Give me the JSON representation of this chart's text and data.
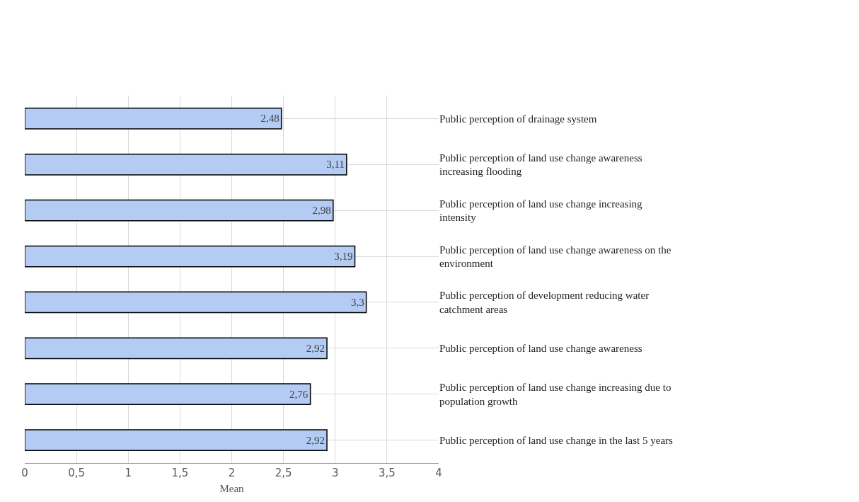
{
  "chart_data": {
    "type": "bar",
    "orientation": "horizontal",
    "xlabel": "Mean",
    "categories": [
      "Public perception of drainage system",
      "Public perception of land use change awareness increasing flooding",
      "Public perception of land use change increasing intensity",
      "Public perception of land use change awareness on the environment",
      "Public perception of development reducing water catchment areas",
      "Public perception of land use change awareness",
      "Public perception of land use change increasing due to population growth",
      "Public perception of land use change in the last 5 years"
    ],
    "values": [
      2.48,
      3.11,
      2.98,
      3.19,
      3.3,
      2.92,
      2.76,
      2.92
    ],
    "value_labels": [
      "2,48",
      "3,11",
      "2,98",
      "3,19",
      "3,3",
      "2,92",
      "2,76",
      "2,92"
    ],
    "color": "#b4cbf3",
    "xlim": [
      0,
      4
    ],
    "xticks": [
      0,
      {
        "value": 0.5,
        "label": "0,5"
      },
      1,
      {
        "value": 1.5,
        "label": "1,5"
      },
      2,
      {
        "value": 2.5,
        "label": "2,5"
      },
      3,
      {
        "value": 3.5,
        "label": "3,5"
      },
      4
    ],
    "grid": true
  }
}
